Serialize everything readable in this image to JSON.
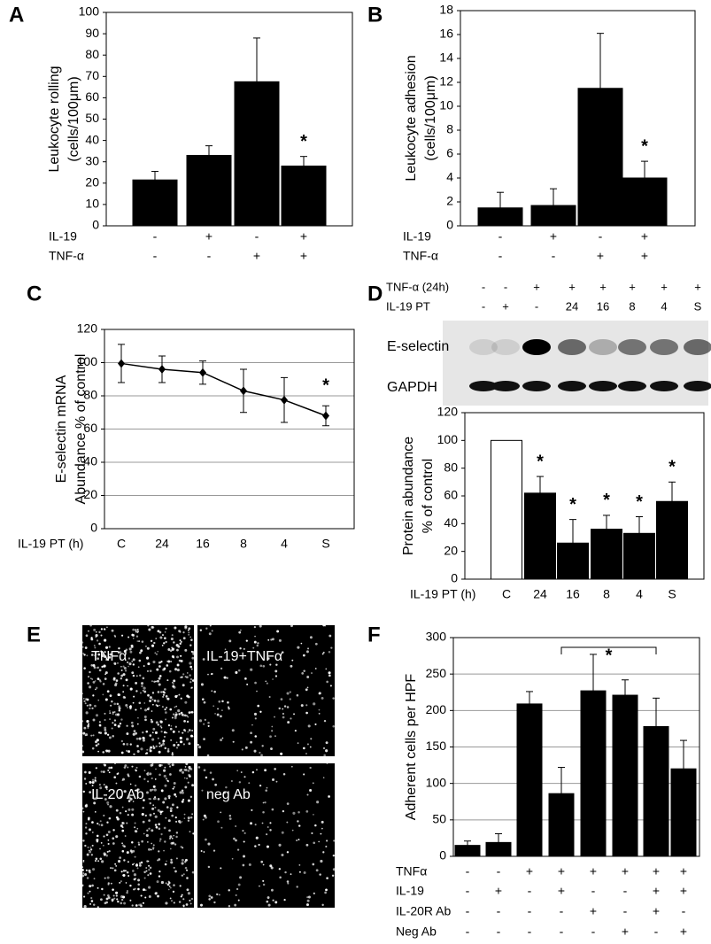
{
  "chart_data": [
    {
      "type": "bar",
      "panel": "A",
      "y_label": [
        "Leukocyte rolling",
        "(cells/100μm)"
      ],
      "values": [
        21.5,
        33,
        67.5,
        28
      ],
      "errors": [
        4,
        4.5,
        20.5,
        4.5
      ],
      "significance": [
        null,
        null,
        null,
        "*"
      ],
      "color": "#000000",
      "ylim": [
        0,
        100
      ],
      "yticks": [
        0,
        10,
        20,
        30,
        40,
        50,
        60,
        70,
        80,
        90,
        100
      ],
      "grid": false,
      "condition_rows": [
        {
          "label": "IL-19",
          "values": [
            "-",
            "+",
            "-",
            "+"
          ]
        },
        {
          "label": "TNF-α",
          "values": [
            "-",
            "-",
            "+",
            "+"
          ]
        }
      ]
    },
    {
      "type": "bar",
      "panel": "B",
      "y_label": [
        "Leukocyte adhesion",
        "(cells/100μm)"
      ],
      "values": [
        1.5,
        1.7,
        11.5,
        4.0
      ],
      "errors": [
        1.3,
        1.4,
        4.6,
        1.4
      ],
      "significance": [
        null,
        null,
        null,
        "*"
      ],
      "color": "#000000",
      "ylim": [
        0,
        18
      ],
      "yticks": [
        0,
        2,
        4,
        6,
        8,
        10,
        12,
        14,
        16,
        18
      ],
      "grid": false,
      "condition_rows": [
        {
          "label": "IL-19",
          "values": [
            "-",
            "+",
            "-",
            "+"
          ]
        },
        {
          "label": "TNF-α",
          "values": [
            "-",
            "-",
            "+",
            "+"
          ]
        }
      ]
    },
    {
      "type": "line",
      "panel": "C",
      "y_label": [
        "E-selectin mRNA",
        "Abundance % of control"
      ],
      "x_label": "IL-19 PT (h)",
      "categories": [
        "C",
        "24",
        "16",
        "8",
        "4",
        "S"
      ],
      "values": [
        99.5,
        96,
        94,
        83,
        77.5,
        68
      ],
      "errors": [
        11.5,
        8,
        7,
        13,
        13.5,
        6
      ],
      "significance": [
        null,
        null,
        null,
        null,
        null,
        "*"
      ],
      "color": "#000000",
      "ylim": [
        0,
        120
      ],
      "yticks": [
        0,
        20,
        40,
        60,
        80,
        100,
        120
      ],
      "grid": true
    },
    {
      "type": "bar",
      "panel": "D",
      "y_label": [
        "Protein abundance",
        "% of control"
      ],
      "x_label": "IL-19 PT (h)",
      "categories": [
        "C",
        "24",
        "16",
        "8",
        "4",
        "S"
      ],
      "values": [
        100,
        62,
        26,
        36,
        33,
        56
      ],
      "errors": [
        null,
        12,
        17,
        10,
        12,
        14
      ],
      "significance": [
        null,
        "*",
        "*",
        "*",
        "*",
        "*"
      ],
      "colors": [
        "#ffffff",
        "#000000",
        "#000000",
        "#000000",
        "#000000",
        "#000000"
      ],
      "ylim": [
        0,
        120
      ],
      "yticks": [
        0,
        20,
        40,
        60,
        80,
        100,
        120
      ],
      "grid": false,
      "blot": {
        "header_rows": [
          {
            "label": "TNF-α (24h)",
            "values": [
              "-",
              "-",
              "+",
              "+",
              "+",
              "+",
              "+",
              "+"
            ]
          },
          {
            "label": "IL-19 PT",
            "values": [
              "-",
              "+",
              "-",
              "24",
              "16",
              "8",
              "4",
              "S"
            ]
          }
        ],
        "bands": [
          "E-selectin",
          "GAPDH"
        ]
      }
    },
    {
      "type": "bar",
      "panel": "F",
      "y_label": [
        "Adherent cells per HPF"
      ],
      "values": [
        15,
        19,
        209,
        86,
        227,
        221,
        178,
        120
      ],
      "errors": [
        6,
        12,
        17,
        36,
        50,
        21,
        39,
        39
      ],
      "bracket_label": "*",
      "color": "#000000",
      "ylim": [
        0,
        300
      ],
      "yticks": [
        0,
        50,
        100,
        150,
        200,
        250,
        300
      ],
      "grid": true,
      "condition_rows": [
        {
          "label": "TNFα",
          "values": [
            "-",
            "-",
            "+",
            "+",
            "+",
            "+",
            "+",
            "+"
          ]
        },
        {
          "label": "IL-19",
          "values": [
            "-",
            "+",
            "-",
            "+",
            "-",
            "-",
            "+",
            "+"
          ]
        },
        {
          "label": "IL-20R Ab",
          "values": [
            "-",
            "-",
            "-",
            "-",
            "+",
            "-",
            "+",
            "-"
          ]
        },
        {
          "label": "Neg Ab",
          "values": [
            "-",
            "-",
            "-",
            "-",
            "-",
            "+",
            "-",
            "+"
          ]
        }
      ]
    }
  ],
  "micrographs": {
    "panel": "E",
    "labels": [
      "TNFα",
      "IL-19+TNFα",
      "IL-20 Ab",
      "neg Ab"
    ]
  }
}
